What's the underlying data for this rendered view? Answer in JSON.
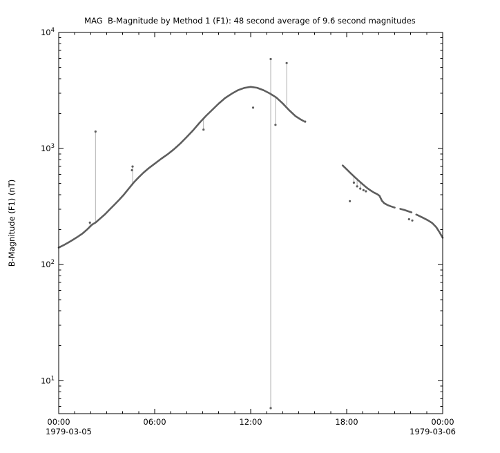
{
  "page": {
    "background": "#ffffff"
  },
  "chart_data": {
    "type": "scatter",
    "title": "MAG  B-Magnitude by Method 1 (F1): 48 second average of 9.6 second magnitudes",
    "ylabel": "B-Magnitude (F1) (nT)",
    "xlabel": "",
    "grid": false,
    "legend": "none",
    "axis_color": "#000000",
    "x_axis": {
      "range_hours": [
        0,
        24
      ],
      "start_date": "1979-03-05",
      "end_date": "1979-03-06",
      "minor_tick_every_hours": 1,
      "major_ticks": [
        {
          "hour": 0,
          "label": "00:00"
        },
        {
          "hour": 6,
          "label": "06:00"
        },
        {
          "hour": 12,
          "label": "12:00"
        },
        {
          "hour": 18,
          "label": "18:00"
        },
        {
          "hour": 24,
          "label": "00:00"
        }
      ]
    },
    "y_axis": {
      "scale": "log",
      "unit": "nT",
      "range": [
        5.2,
        10000
      ],
      "major_ticks": [
        {
          "value": 10000,
          "base": "10",
          "exp": "4"
        },
        {
          "value": 1000,
          "base": "10",
          "exp": "3"
        },
        {
          "value": 100,
          "base": "10",
          "exp": "2"
        },
        {
          "value": 10,
          "base": "10",
          "exp": "1"
        }
      ]
    },
    "series": [
      {
        "name": "b-magnitude-48s-average",
        "color": "#5e5e5e",
        "style": "dense-dot-curve",
        "segments": [
          [
            [
              0,
              140
            ],
            [
              0.3,
              147
            ],
            [
              0.6,
              155
            ],
            [
              0.9,
              164
            ],
            [
              1.2,
              174
            ],
            [
              1.5,
              186
            ],
            [
              1.8,
              202
            ],
            [
              1.95,
              212
            ],
            [
              2.1,
              222
            ],
            [
              2.3,
              230
            ],
            [
              2.6,
              250
            ],
            [
              2.9,
              272
            ],
            [
              3.2,
              300
            ],
            [
              3.5,
              330
            ],
            [
              3.8,
              364
            ],
            [
              4.1,
              405
            ],
            [
              4.4,
              455
            ],
            [
              4.7,
              512
            ],
            [
              5,
              565
            ],
            [
              5.3,
              620
            ],
            [
              5.6,
              672
            ],
            [
              6,
              740
            ],
            [
              6.4,
              815
            ],
            [
              6.8,
              890
            ],
            [
              7.2,
              985
            ],
            [
              7.6,
              1105
            ],
            [
              8,
              1255
            ],
            [
              8.4,
              1435
            ],
            [
              8.8,
              1665
            ],
            [
              9.2,
              1905
            ],
            [
              9.6,
              2155
            ],
            [
              10,
              2440
            ],
            [
              10.4,
              2720
            ],
            [
              10.8,
              2960
            ],
            [
              11.2,
              3180
            ],
            [
              11.6,
              3330
            ],
            [
              12,
              3400
            ],
            [
              12.4,
              3340
            ],
            [
              12.8,
              3180
            ],
            [
              13.2,
              2980
            ],
            [
              13.6,
              2750
            ],
            [
              14,
              2450
            ],
            [
              14.4,
              2140
            ],
            [
              14.8,
              1900
            ],
            [
              15.1,
              1790
            ],
            [
              15.3,
              1725
            ]
          ],
          [
            [
              17.75,
              715
            ],
            [
              18,
              662
            ],
            [
              18.25,
              612
            ],
            [
              18.5,
              568
            ],
            [
              18.75,
              528
            ],
            [
              19,
              492
            ],
            [
              19.25,
              460
            ],
            [
              19.5,
              435
            ],
            [
              19.7,
              418
            ],
            [
              19.9,
              405
            ],
            [
              20.05,
              392
            ],
            [
              20.2,
              355
            ],
            [
              20.35,
              338
            ],
            [
              20.55,
              326
            ],
            [
              20.75,
              318
            ],
            [
              21,
              310
            ]
          ],
          [
            [
              21.35,
              302
            ],
            [
              21.6,
              296
            ],
            [
              21.85,
              288
            ],
            [
              22.05,
              282
            ]
          ],
          [
            [
              22.35,
              270
            ],
            [
              22.6,
              260
            ],
            [
              22.85,
              250
            ],
            [
              23.1,
              240
            ],
            [
              23.35,
              228
            ],
            [
              23.6,
              210
            ],
            [
              23.8,
              190
            ],
            [
              24,
              170
            ]
          ]
        ]
      }
    ],
    "spikes": {
      "color": "#aaaaaa",
      "lines": [
        [
          1.95,
          206,
          230
        ],
        [
          2.3,
          235,
          1400
        ],
        [
          4.62,
          505,
          700
        ],
        [
          9.05,
          1830,
          1455
        ],
        [
          13.25,
          5.8,
          5900
        ],
        [
          13.55,
          2760,
          1600
        ],
        [
          14.25,
          2350,
          5450
        ],
        [
          18.45,
          575,
          508
        ],
        [
          18.65,
          548,
          472
        ],
        [
          18.85,
          518,
          452
        ]
      ]
    },
    "outliers": {
      "color": "#5e5e5e",
      "points": [
        [
          1.95,
          230
        ],
        [
          2.3,
          1400
        ],
        [
          4.58,
          650
        ],
        [
          4.62,
          700
        ],
        [
          9.05,
          1455
        ],
        [
          12.15,
          2250
        ],
        [
          13.25,
          5.8
        ],
        [
          13.25,
          5900
        ],
        [
          13.55,
          1600
        ],
        [
          14.25,
          5450
        ],
        [
          15.4,
          1705
        ],
        [
          18.2,
          352
        ],
        [
          18.45,
          508
        ],
        [
          18.65,
          472
        ],
        [
          18.85,
          452
        ],
        [
          19.05,
          438
        ],
        [
          19.2,
          428
        ],
        [
          21.9,
          246
        ],
        [
          22.1,
          240
        ]
      ]
    }
  }
}
